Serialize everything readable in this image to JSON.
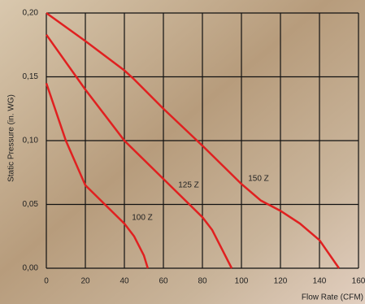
{
  "chart_data": {
    "type": "line",
    "y_label": "Static Pressure (in. WG)",
    "x_label": "Flow Rate (CFM)",
    "xlim": [
      0,
      160
    ],
    "xticks": [
      0,
      20,
      40,
      60,
      80,
      100,
      120,
      140,
      160
    ],
    "ylim": [
      0,
      0.2
    ],
    "yticks": [
      {
        "value": 0,
        "label": "0,00"
      },
      {
        "value": 0.05,
        "label": "0,05"
      },
      {
        "value": 0.1,
        "label": "0,10"
      },
      {
        "value": 0.15,
        "label": "0,15"
      },
      {
        "value": 0.2,
        "label": "0,20"
      }
    ],
    "grid": true,
    "series": [
      {
        "name": "100 Z",
        "color": "#e02020",
        "x": [
          0,
          10,
          20,
          30,
          40,
          45,
          50,
          52
        ],
        "values": [
          0.145,
          0.1,
          0.065,
          0.05,
          0.035,
          0.025,
          0.01,
          0
        ]
      },
      {
        "name": "125 Z",
        "color": "#e02020",
        "x": [
          0,
          20,
          40,
          60,
          80,
          85,
          90,
          95
        ],
        "values": [
          0.183,
          0.14,
          0.1,
          0.07,
          0.04,
          0.03,
          0.015,
          0
        ]
      },
      {
        "name": "150 Z",
        "color": "#e02020",
        "x": [
          0,
          20,
          40,
          45,
          60,
          80,
          100,
          110,
          120,
          130,
          140,
          150
        ],
        "values": [
          0.2,
          0.178,
          0.155,
          0.148,
          0.125,
          0.096,
          0.066,
          0.053,
          0.045,
          0.035,
          0.022,
          0
        ]
      }
    ]
  }
}
